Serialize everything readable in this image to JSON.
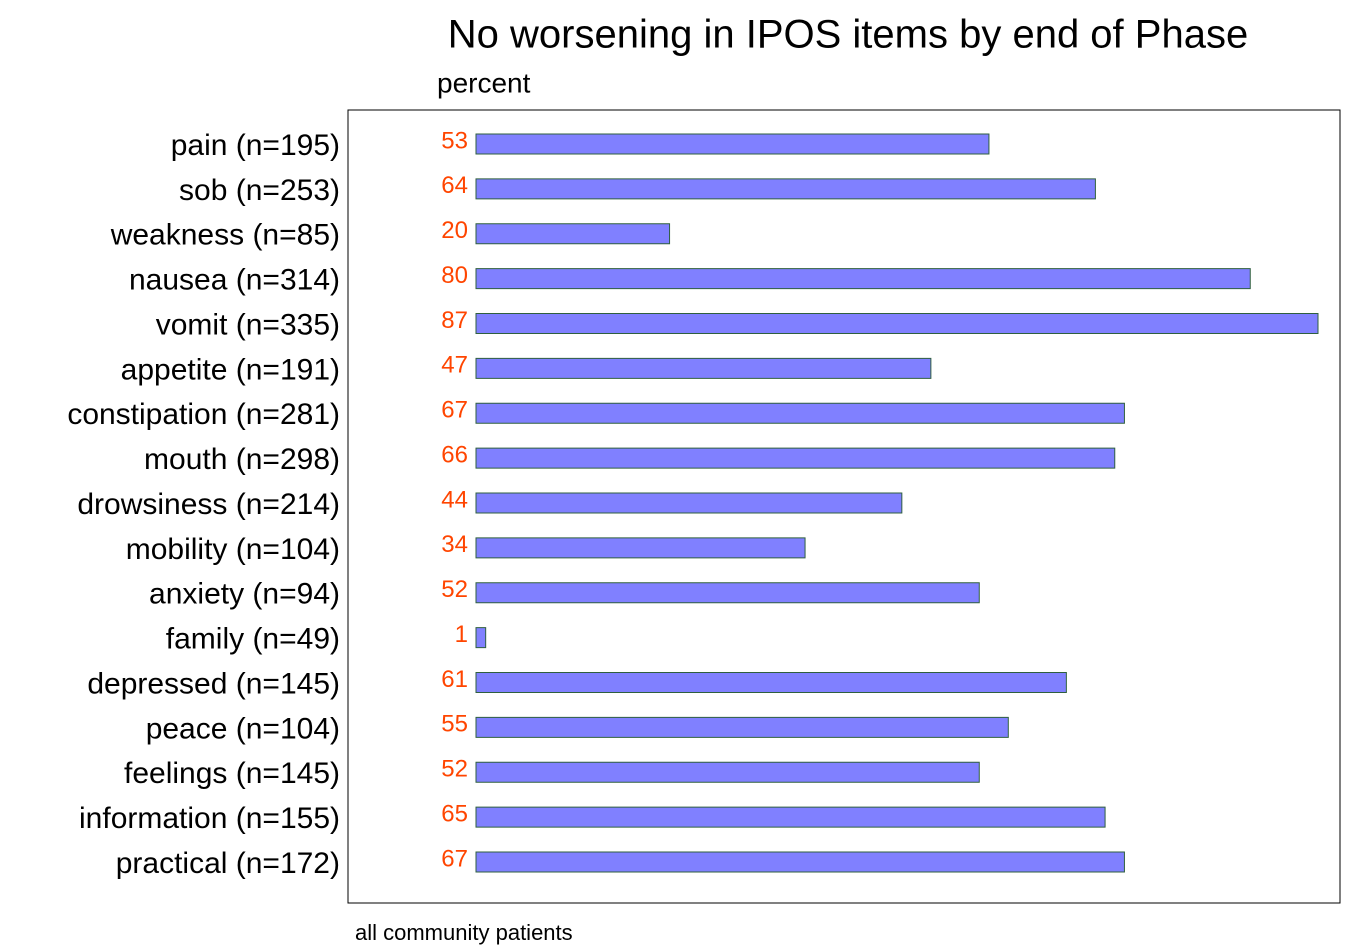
{
  "chart_data": {
    "type": "bar",
    "orientation": "horizontal",
    "title": "No worsening in IPOS items by end of Phase",
    "subtitle": "percent",
    "note": "all community patients",
    "categories": [
      "pain (n=195)",
      "sob (n=253)",
      "weakness (n=85)",
      "nausea (n=314)",
      "vomit (n=335)",
      "appetite (n=191)",
      "constipation (n=281)",
      "mouth (n=298)",
      "drowsiness (n=214)",
      "mobility (n=104)",
      "anxiety (n=94)",
      "family (n=49)",
      "depressed (n=145)",
      "peace (n=104)",
      "feelings (n=145)",
      "information (n=155)",
      "practical (n=172)"
    ],
    "values": [
      53,
      64,
      20,
      80,
      87,
      47,
      67,
      66,
      44,
      34,
      52,
      1,
      61,
      55,
      52,
      65,
      67
    ],
    "color": "#8080ff",
    "edge_color": "#2f5f3f"
  }
}
